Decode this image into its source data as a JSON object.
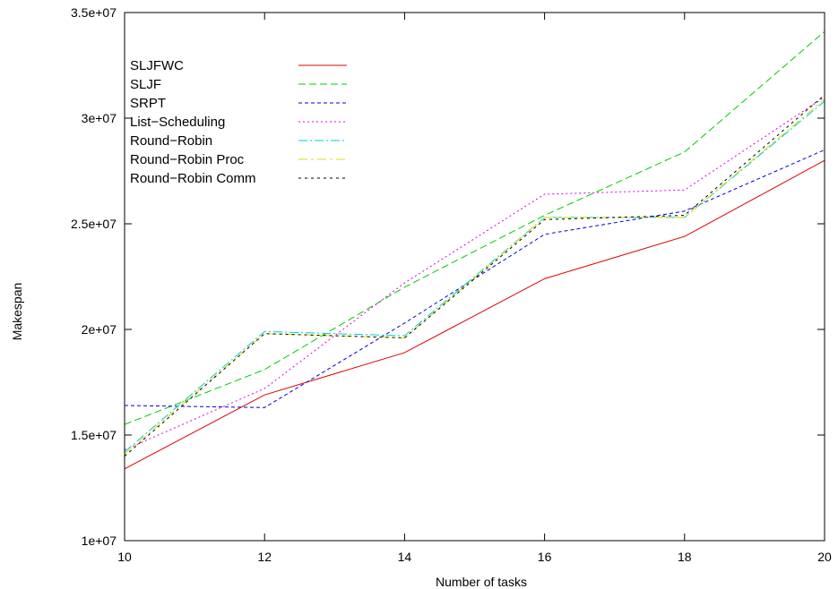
{
  "chart_data": {
    "type": "line",
    "title": "",
    "xlabel": "Number of tasks",
    "ylabel": "Makespan",
    "x": [
      10,
      12,
      14,
      16,
      18,
      20
    ],
    "xlim": [
      10,
      20
    ],
    "ylim": [
      10000000,
      35000000
    ],
    "xticks": [
      10,
      12,
      14,
      16,
      18,
      20
    ],
    "xtick_labels": [
      "10",
      "12",
      "14",
      "16",
      "18",
      "20"
    ],
    "yticks": [
      10000000,
      15000000,
      20000000,
      25000000,
      30000000,
      35000000
    ],
    "ytick_labels": [
      "1e+07",
      "1.5e+07",
      "2e+07",
      "2.5e+07",
      "3e+07",
      "3.5e+07"
    ],
    "grid": false,
    "legend_position": "top-left",
    "series": [
      {
        "name": "SLJFWC",
        "color": "#dd0000",
        "dash": "",
        "values": [
          13400000,
          16900000,
          18900000,
          22400000,
          24400000,
          28000000
        ]
      },
      {
        "name": "SLJF",
        "color": "#00cc00",
        "dash": "8,4",
        "values": [
          15500000,
          18100000,
          22000000,
          25400000,
          28400000,
          34100000
        ]
      },
      {
        "name": "SRPT",
        "color": "#0000dd",
        "dash": "4,3",
        "values": [
          16400000,
          16300000,
          20300000,
          24500000,
          25600000,
          28500000
        ]
      },
      {
        "name": "List−Scheduling",
        "color": "#dd00dd",
        "dash": "2,3",
        "values": [
          14300000,
          17200000,
          22200000,
          26400000,
          26600000,
          31000000
        ]
      },
      {
        "name": "Round−Robin",
        "color": "#00cccc",
        "dash": "10,3,2,3",
        "values": [
          14200000,
          19900000,
          19700000,
          25300000,
          25300000,
          30800000
        ]
      },
      {
        "name": "Round−Robin Proc",
        "color": "#dddd00",
        "dash": "10,4,3,4",
        "values": [
          14100000,
          19800000,
          19600000,
          25300000,
          25300000,
          30900000
        ]
      },
      {
        "name": "Round−Robin Comm",
        "color": "#000000",
        "dash": "3,4",
        "values": [
          14000000,
          19800000,
          19600000,
          25200000,
          25400000,
          31100000
        ]
      }
    ]
  }
}
